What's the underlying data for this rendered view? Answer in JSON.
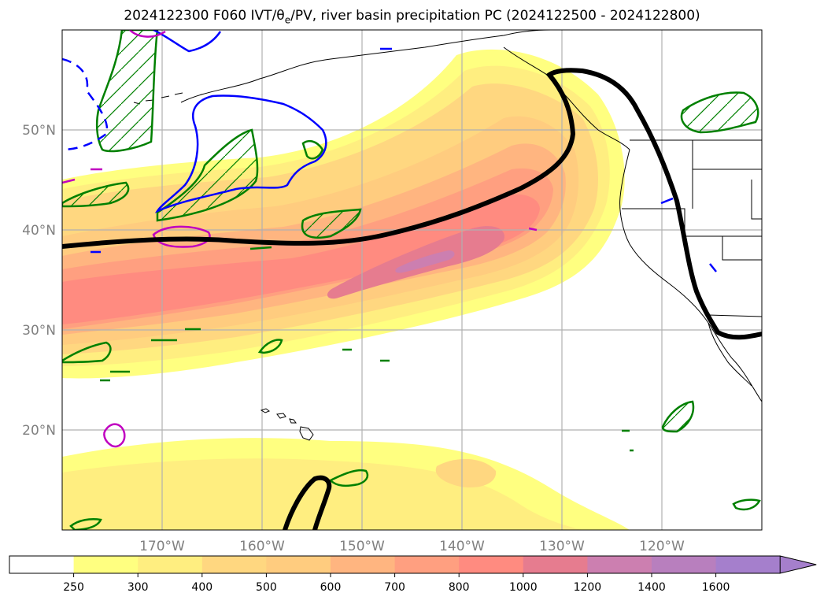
{
  "title": {
    "prefix": "2024122300 F060 IVT/θ",
    "sub": "e",
    "suffix": "/PV, river basin precipitation PC (2024122500 - 2024122800)"
  },
  "colors": {
    "ar_outline": "#000000",
    "pv_contour": "#0000ff",
    "theta_contour": "#008000",
    "minor_contour": "#c000c0",
    "coast": "#000000",
    "grid": "#b0b0b0"
  },
  "map": {
    "lon_min": -180,
    "lon_max": -110,
    "lat_min": 10,
    "lat_max": 60,
    "lat_ticks": [
      {
        "value": 20,
        "label": "20°N"
      },
      {
        "value": 30,
        "label": "30°N"
      },
      {
        "value": 40,
        "label": "40°N"
      },
      {
        "value": 50,
        "label": "50°N"
      }
    ],
    "lon_ticks": [
      {
        "value": -170,
        "label": "170°W"
      },
      {
        "value": -160,
        "label": "160°W"
      },
      {
        "value": -150,
        "label": "150°W"
      },
      {
        "value": -140,
        "label": "140°W"
      },
      {
        "value": -130,
        "label": "130°W"
      },
      {
        "value": -120,
        "label": "120°W"
      }
    ]
  },
  "colorbar": {
    "levels": [
      250,
      300,
      400,
      500,
      600,
      700,
      800,
      1000,
      1200,
      1400,
      1600
    ],
    "colors": [
      "#ffffff",
      "#ffff80",
      "#ffee80",
      "#ffd780",
      "#ffcc7f",
      "#ffb580",
      "#ff9f80",
      "#ff8b80",
      "#e67c8f",
      "#cc7fb0",
      "#b87fbe",
      "#a57fcc"
    ],
    "extend": "max"
  },
  "ivt_layers": [
    {
      "name": "250",
      "color": "#ffff80"
    },
    {
      "name": "300",
      "color": "#ffee80"
    },
    {
      "name": "400",
      "color": "#ffd780"
    },
    {
      "name": "500",
      "color": "#ffcc7f"
    },
    {
      "name": "600",
      "color": "#ffb580"
    },
    {
      "name": "700",
      "color": "#ff9f80"
    },
    {
      "name": "800",
      "color": "#ff8b80"
    },
    {
      "name": "1000",
      "color": "#e67c8f"
    },
    {
      "name": "1200",
      "color": "#cc7fb0"
    }
  ]
}
